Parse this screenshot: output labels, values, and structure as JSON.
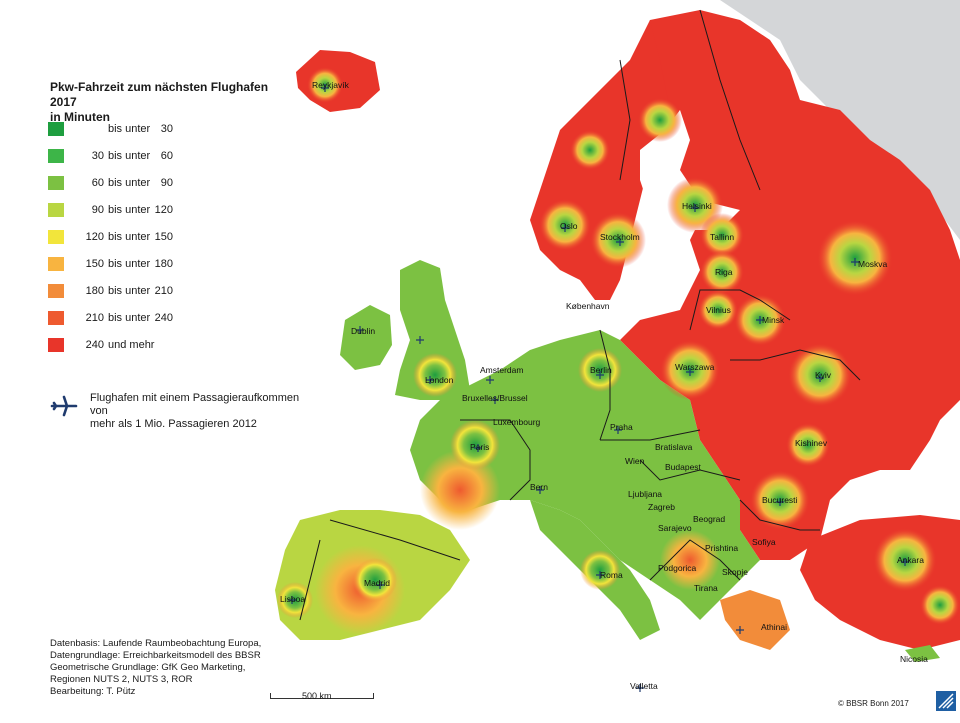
{
  "legend": {
    "title_line1": "Pkw-Fahrzeit zum nächsten Flughafen 2017",
    "title_line2": "in Minuten",
    "classes": [
      {
        "from": "",
        "word": "bis unter",
        "to": "30",
        "color": "#1e9e3f"
      },
      {
        "from": "30",
        "word": "bis unter",
        "to": "60",
        "color": "#3db548"
      },
      {
        "from": "60",
        "word": "bis unter",
        "to": "90",
        "color": "#7cc142"
      },
      {
        "from": "90",
        "word": "bis unter",
        "to": "120",
        "color": "#b9d642"
      },
      {
        "from": "120",
        "word": "bis unter",
        "to": "150",
        "color": "#f2e53b"
      },
      {
        "from": "150",
        "word": "bis unter",
        "to": "180",
        "color": "#f8b440"
      },
      {
        "from": "180",
        "word": "bis unter",
        "to": "210",
        "color": "#f28c3a"
      },
      {
        "from": "210",
        "word": "bis unter",
        "to": "240",
        "color": "#ee5a2f"
      },
      {
        "from": "240",
        "word": "und mehr",
        "to": "",
        "color": "#e8352a"
      }
    ]
  },
  "airport_legend": {
    "icon": "airplane-icon",
    "line1": "Flughafen mit einem Passagieraufkommen von",
    "line2": "mehr als 1 Mio. Passagieren 2012"
  },
  "notes": {
    "line1": "Datenbasis: Laufende Raumbeobachtung Europa,",
    "line2": "Datengrundlage: Erreichbarkeitsmodell des BBSR",
    "line3": "Geometrische Grundlage: GfK Geo Marketing,",
    "line4": "Regionen NUTS 2, NUTS 3, ROR",
    "line5": "Bearbeitung: T. Pütz"
  },
  "scalebar": {
    "label": "500 km"
  },
  "copyright": "© BBSR Bonn 2017",
  "cities": {
    "reykjavik": "Reykjavík",
    "dublin": "Dublin",
    "london": "London",
    "amsterdam": "Amsterdam",
    "bruxelles": "Bruxelles/Brussel",
    "luxembourg": "Luxembourg",
    "paris": "Paris",
    "bern": "Bern",
    "madrid": "Madrid",
    "lisboa": "Lisboa",
    "roma": "Roma",
    "valletta": "Valletta",
    "oslo": "Oslo",
    "stockholm": "Stockholm",
    "helsinki": "Helsinki",
    "tallinn": "Tallinn",
    "riga": "Riga",
    "vilnius": "Vilnius",
    "kobenhavn": "København",
    "berlin": "Berlin",
    "praha": "Praha",
    "warszawa": "Warszawa",
    "minsk": "Minsk",
    "moskva": "Moskva",
    "kyiv": "Kyiv",
    "kishinev": "Kishinev",
    "bratislava": "Bratislava",
    "wien": "Wien",
    "budapest": "Budapest",
    "ljubljana": "Ljubljana",
    "zagreb": "Zagreb",
    "sarajevo": "Sarajevo",
    "beograd": "Beograd",
    "bucuresti": "Bucuresti",
    "sofiya": "Sofiya",
    "prishtina": "Prishtina",
    "podgorica": "Podgorica",
    "skopje": "Skopje",
    "tirana": "Tirana",
    "athinai": "Athinai",
    "ankara": "Ankara",
    "nicosia": "Nicosia"
  }
}
